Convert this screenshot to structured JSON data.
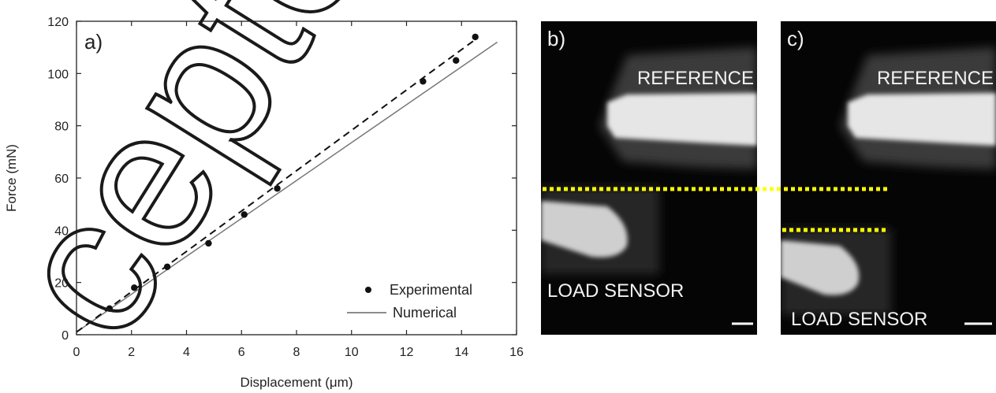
{
  "chart_data": [
    {
      "type": "scatter",
      "panel_label": "a)",
      "xlabel": "Displacement (μm)",
      "ylabel": "Force (mN)",
      "xlim": [
        0,
        16
      ],
      "ylim": [
        0,
        120
      ],
      "x_ticks": [
        0,
        2,
        4,
        6,
        8,
        10,
        12,
        14,
        16
      ],
      "y_ticks": [
        0,
        20,
        40,
        60,
        80,
        100,
        120
      ],
      "grid": false,
      "legend_position": "bottom-right",
      "series": [
        {
          "name": "Experimental",
          "style": "points",
          "x": [
            1.2,
            2.1,
            3.3,
            4.8,
            6.1,
            7.3,
            12.6,
            13.8,
            14.5
          ],
          "y": [
            10,
            18,
            26,
            35,
            46,
            56,
            97,
            105,
            114
          ]
        },
        {
          "name": "Numerical",
          "style": "solid-line",
          "x": [
            0,
            15.3
          ],
          "y": [
            1,
            112
          ]
        },
        {
          "style": "dashed-line",
          "x": [
            0,
            14.5
          ],
          "y": [
            1,
            113
          ]
        }
      ]
    }
  ],
  "panels": {
    "b": {
      "label": "b)",
      "top_text": "REFERENCE",
      "bottom_text": "LOAD SENSOR"
    },
    "c": {
      "label": "c)",
      "top_text": "REFERENCE",
      "bottom_text": "LOAD SENSOR"
    }
  },
  "watermark": "cepted",
  "colors": {
    "marker_line": "#ffff00",
    "photo_background": "#050505",
    "axis": "#222222"
  }
}
